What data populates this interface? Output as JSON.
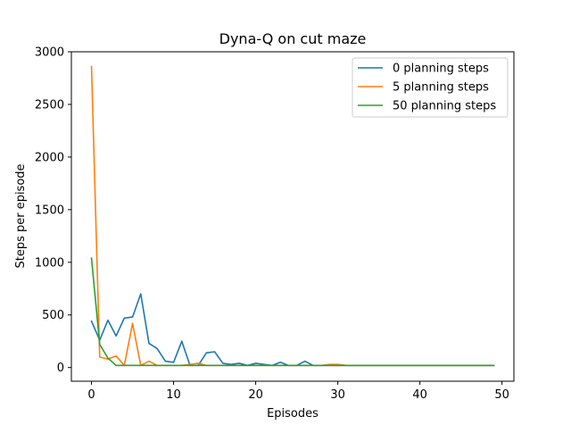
{
  "chart_data": {
    "type": "line",
    "title": "Dyna-Q on cut maze",
    "xlabel": "Episodes",
    "ylabel": "Steps per episode",
    "xlim": [
      -2.45,
      51.45
    ],
    "ylim": [
      -130,
      3000
    ],
    "xticks": [
      0,
      10,
      20,
      30,
      40,
      50
    ],
    "yticks": [
      0,
      500,
      1000,
      1500,
      2000,
      2500,
      3000
    ],
    "grid": false,
    "legend_position": "top-right",
    "series": [
      {
        "name": "0 planning steps",
        "color": "#1f77b4",
        "x": [
          0,
          1,
          2,
          3,
          4,
          5,
          6,
          7,
          8,
          9,
          10,
          11,
          12,
          13,
          14,
          15,
          16,
          17,
          18,
          19,
          20,
          21,
          22,
          23,
          24,
          25,
          26,
          27,
          28,
          29,
          30,
          31,
          32,
          33,
          34,
          35,
          36,
          37,
          38,
          39,
          40,
          41,
          42,
          43,
          44,
          45,
          46,
          47,
          48,
          49
        ],
        "y": [
          440,
          260,
          450,
          300,
          470,
          480,
          700,
          230,
          180,
          60,
          50,
          250,
          20,
          20,
          140,
          150,
          40,
          30,
          40,
          20,
          40,
          30,
          20,
          50,
          20,
          20,
          60,
          20,
          20,
          20,
          20,
          20,
          20,
          20,
          20,
          20,
          20,
          20,
          20,
          20,
          20,
          20,
          20,
          20,
          20,
          20,
          20,
          20,
          20,
          20
        ]
      },
      {
        "name": "5 planning steps",
        "color": "#ff7f0e",
        "x": [
          0,
          1,
          2,
          3,
          4,
          5,
          6,
          7,
          8,
          9,
          10,
          11,
          12,
          13,
          14,
          15,
          16,
          17,
          18,
          19,
          20,
          21,
          22,
          23,
          24,
          25,
          26,
          27,
          28,
          29,
          30,
          31,
          32,
          33,
          34,
          35,
          36,
          37,
          38,
          39,
          40,
          41,
          42,
          43,
          44,
          45,
          46,
          47,
          48,
          49
        ],
        "y": [
          2860,
          100,
          80,
          110,
          20,
          420,
          20,
          60,
          20,
          20,
          20,
          20,
          30,
          40,
          20,
          20,
          20,
          20,
          20,
          20,
          20,
          20,
          20,
          20,
          20,
          20,
          20,
          20,
          20,
          30,
          30,
          20,
          20,
          20,
          20,
          20,
          20,
          20,
          20,
          20,
          20,
          20,
          20,
          20,
          20,
          20,
          20,
          20,
          20,
          20
        ]
      },
      {
        "name": "50 planning steps",
        "color": "#2ca02c",
        "x": [
          0,
          1,
          2,
          3,
          4,
          5,
          6,
          7,
          8,
          9,
          10,
          11,
          12,
          13,
          14,
          15,
          16,
          17,
          18,
          19,
          20,
          21,
          22,
          23,
          24,
          25,
          26,
          27,
          28,
          29,
          30,
          31,
          32,
          33,
          34,
          35,
          36,
          37,
          38,
          39,
          40,
          41,
          42,
          43,
          44,
          45,
          46,
          47,
          48,
          49
        ],
        "y": [
          1040,
          220,
          90,
          20,
          20,
          20,
          20,
          20,
          20,
          20,
          20,
          20,
          20,
          20,
          20,
          20,
          20,
          20,
          20,
          20,
          20,
          20,
          20,
          20,
          20,
          20,
          20,
          20,
          20,
          20,
          20,
          20,
          20,
          20,
          20,
          20,
          20,
          20,
          20,
          20,
          20,
          20,
          20,
          20,
          20,
          20,
          20,
          20,
          20,
          20
        ]
      }
    ]
  }
}
